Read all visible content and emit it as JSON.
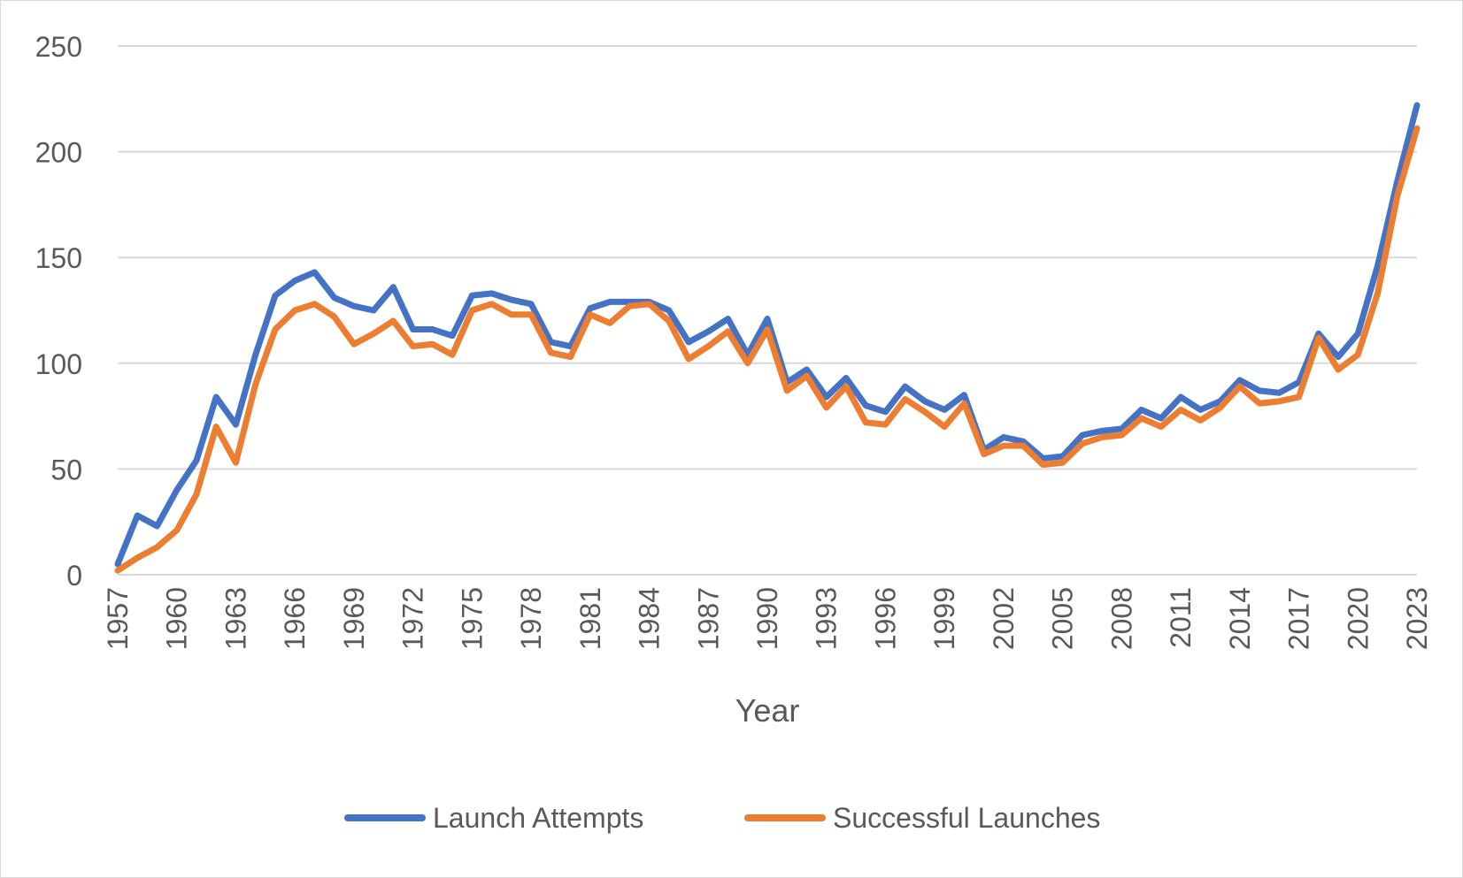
{
  "chart_data": {
    "type": "line",
    "title": "",
    "xlabel": "Year",
    "ylabel": "",
    "ylim": [
      0,
      250
    ],
    "yticks": [
      0,
      50,
      100,
      150,
      200,
      250
    ],
    "grid": true,
    "legend": "bottom",
    "x": [
      1957,
      1958,
      1959,
      1960,
      1961,
      1962,
      1963,
      1964,
      1965,
      1966,
      1967,
      1968,
      1969,
      1970,
      1971,
      1972,
      1973,
      1974,
      1975,
      1976,
      1977,
      1978,
      1979,
      1980,
      1981,
      1982,
      1983,
      1984,
      1985,
      1986,
      1987,
      1988,
      1989,
      1990,
      1991,
      1992,
      1993,
      1994,
      1995,
      1996,
      1997,
      1998,
      1999,
      2000,
      2001,
      2002,
      2003,
      2004,
      2005,
      2006,
      2007,
      2008,
      2009,
      2010,
      2011,
      2012,
      2013,
      2014,
      2015,
      2016,
      2017,
      2018,
      2019,
      2020,
      2021,
      2022,
      2023
    ],
    "xtick_labels": [
      "1957",
      "1960",
      "1963",
      "1966",
      "1969",
      "1972",
      "1975",
      "1978",
      "1981",
      "1984",
      "1987",
      "1990",
      "1993",
      "1996",
      "1999",
      "2002",
      "2005",
      "2008",
      "2011",
      "2014",
      "2017",
      "2020",
      "2023"
    ],
    "series": [
      {
        "name": "Launch Attempts",
        "color": "#4472C4",
        "values": [
          5,
          28,
          23,
          40,
          54,
          84,
          71,
          104,
          132,
          139,
          143,
          131,
          127,
          125,
          136,
          116,
          116,
          113,
          132,
          133,
          130,
          128,
          110,
          108,
          126,
          129,
          129,
          129,
          125,
          110,
          115,
          121,
          104,
          121,
          91,
          97,
          84,
          93,
          80,
          77,
          89,
          82,
          78,
          85,
          59,
          65,
          63,
          55,
          56,
          66,
          68,
          69,
          78,
          74,
          84,
          78,
          82,
          92,
          87,
          86,
          91,
          114,
          103,
          114,
          146,
          186,
          222
        ]
      },
      {
        "name": "Successful Launches",
        "color": "#ED7D31",
        "values": [
          2,
          8,
          13,
          21,
          38,
          70,
          53,
          90,
          116,
          125,
          128,
          122,
          109,
          114,
          120,
          108,
          109,
          104,
          125,
          128,
          123,
          123,
          105,
          103,
          123,
          119,
          127,
          128,
          120,
          102,
          108,
          115,
          100,
          116,
          87,
          94,
          79,
          89,
          72,
          71,
          83,
          77,
          70,
          81,
          57,
          61,
          61,
          52,
          53,
          62,
          65,
          66,
          74,
          70,
          78,
          73,
          79,
          89,
          81,
          82,
          84,
          112,
          97,
          104,
          133,
          179,
          211
        ]
      }
    ]
  }
}
